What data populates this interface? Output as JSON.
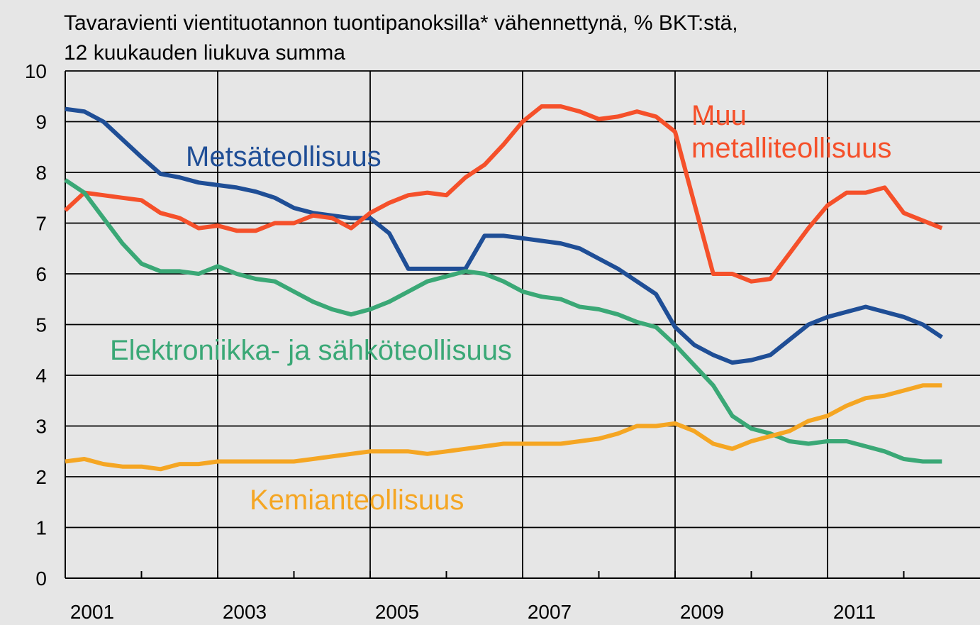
{
  "chart_data": {
    "type": "line",
    "title": [
      "Tavaravienti vientituotannon tuontipanoksilla* vähennettynä, % BKT:stä,",
      "12 kuukauden liukuva summa"
    ],
    "x": [
      2001,
      2001.25,
      2001.5,
      2001.75,
      2002,
      2002.25,
      2002.5,
      2002.75,
      2003,
      2003.25,
      2003.5,
      2003.75,
      2004,
      2004.25,
      2004.5,
      2004.75,
      2005,
      2005.25,
      2005.5,
      2005.75,
      2006,
      2006.25,
      2006.5,
      2006.75,
      2007,
      2007.25,
      2007.5,
      2007.75,
      2008,
      2008.25,
      2008.5,
      2008.75,
      2009,
      2009.25,
      2009.5,
      2009.75,
      2010,
      2010.25,
      2010.5,
      2010.75,
      2011,
      2011.25,
      2011.5,
      2011.75,
      2012,
      2012.25,
      2012.5
    ],
    "series": [
      {
        "name": "Metsäteollisuus",
        "color": "#1f4e96",
        "values": [
          9.25,
          9.2,
          9.0,
          8.65,
          8.3,
          7.97,
          7.9,
          7.8,
          7.75,
          7.7,
          7.62,
          7.5,
          7.3,
          7.2,
          7.15,
          7.1,
          7.1,
          6.8,
          6.1,
          6.1,
          6.1,
          6.1,
          6.75,
          6.75,
          6.7,
          6.65,
          6.6,
          6.5,
          6.3,
          6.1,
          5.85,
          5.6,
          4.95,
          4.6,
          4.4,
          4.25,
          4.3,
          4.4,
          4.7,
          5.0,
          5.15,
          5.25,
          5.35,
          5.25,
          5.15,
          5.0,
          4.75
        ]
      },
      {
        "name": "Muu metalliteollisuus",
        "color": "#f5502a",
        "values": [
          7.25,
          7.6,
          7.55,
          7.5,
          7.45,
          7.2,
          7.1,
          6.9,
          6.95,
          6.85,
          6.85,
          7.0,
          7.0,
          7.15,
          7.1,
          6.9,
          7.2,
          7.4,
          7.55,
          7.6,
          7.55,
          7.9,
          8.15,
          8.55,
          9.0,
          9.3,
          9.3,
          9.2,
          9.05,
          9.1,
          9.2,
          9.1,
          8.8,
          7.4,
          6.0,
          6.0,
          5.85,
          5.9,
          6.4,
          6.9,
          7.35,
          7.6,
          7.6,
          7.7,
          7.2,
          7.05,
          6.9
        ]
      },
      {
        "name": "Elektroniikka- ja sähköteollisuus",
        "color": "#3aa876",
        "values": [
          7.85,
          7.6,
          7.1,
          6.6,
          6.2,
          6.05,
          6.05,
          6.0,
          6.15,
          6.0,
          5.9,
          5.85,
          5.65,
          5.45,
          5.3,
          5.2,
          5.3,
          5.45,
          5.65,
          5.85,
          5.95,
          6.05,
          6.0,
          5.85,
          5.65,
          5.55,
          5.5,
          5.35,
          5.3,
          5.2,
          5.05,
          4.95,
          4.6,
          4.2,
          3.8,
          3.2,
          2.95,
          2.85,
          2.7,
          2.65,
          2.7,
          2.7,
          2.6,
          2.5,
          2.35,
          2.3,
          2.3
        ]
      },
      {
        "name": "Kemianteollisuus",
        "color": "#f5a623",
        "values": [
          2.3,
          2.35,
          2.25,
          2.2,
          2.2,
          2.15,
          2.25,
          2.25,
          2.3,
          2.3,
          2.3,
          2.3,
          2.3,
          2.35,
          2.4,
          2.45,
          2.5,
          2.5,
          2.5,
          2.45,
          2.5,
          2.55,
          2.6,
          2.65,
          2.65,
          2.65,
          2.65,
          2.7,
          2.75,
          2.85,
          3.0,
          3.0,
          3.05,
          2.9,
          2.65,
          2.55,
          2.7,
          2.8,
          2.9,
          3.1,
          3.2,
          3.4,
          3.55,
          3.6,
          3.7,
          3.8,
          3.8
        ]
      }
    ],
    "xlim": [
      2001,
      2013
    ],
    "xticks": [
      2001,
      2003,
      2005,
      2007,
      2009,
      2011
    ],
    "ylim": [
      0,
      10
    ],
    "yticks": [
      0,
      1,
      2,
      3,
      4,
      5,
      6,
      7,
      8,
      9,
      10
    ],
    "grid": true
  }
}
